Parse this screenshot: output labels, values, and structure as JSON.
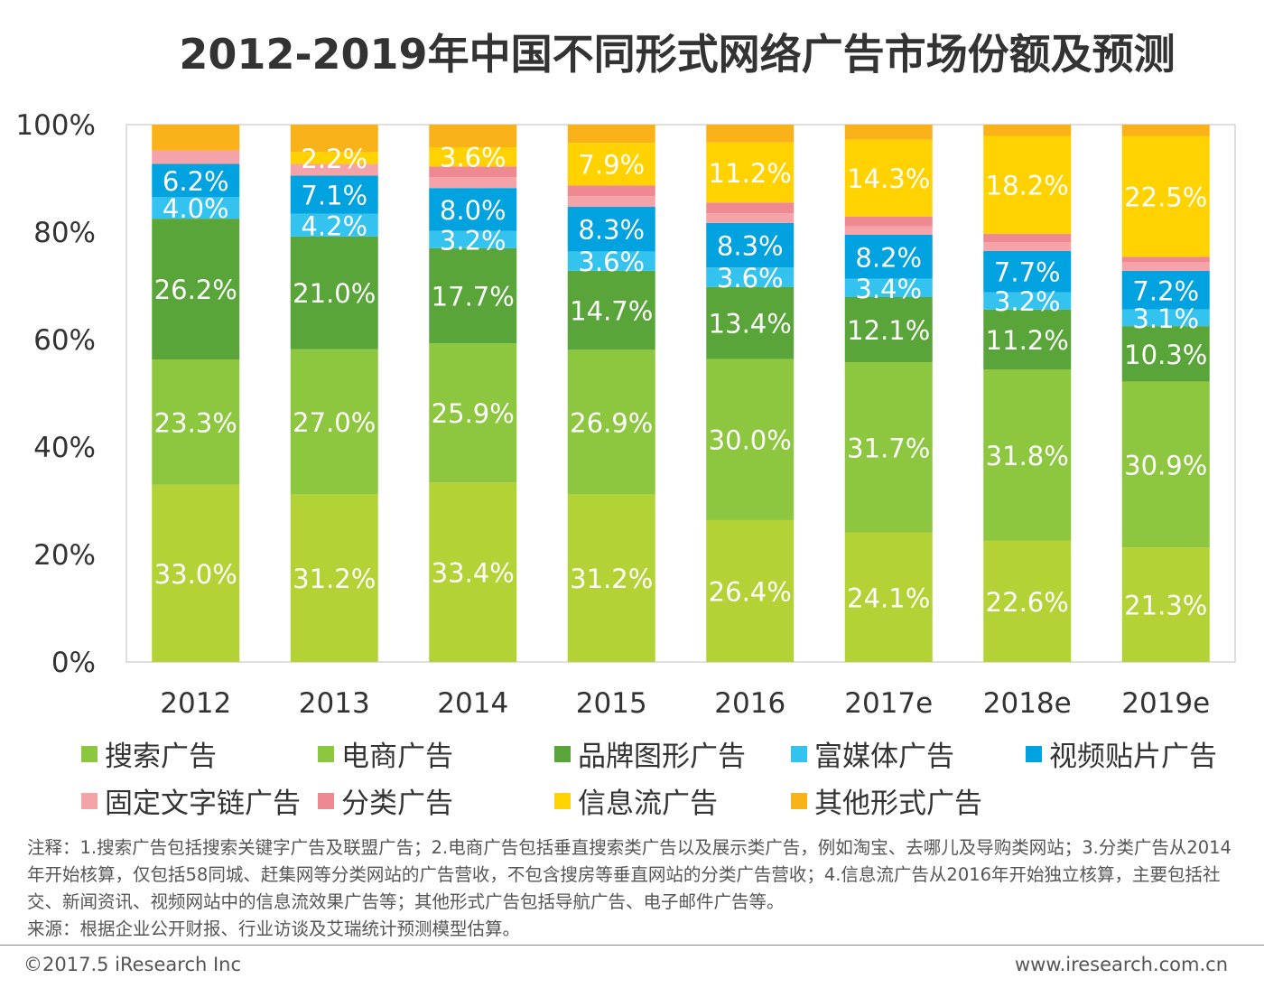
{
  "title": "2012-2019年中国不同形式网络广告市场份额及预测",
  "chart_data": {
    "type": "bar",
    "stacked": true,
    "categories": [
      "2012",
      "2013",
      "2014",
      "2015",
      "2016",
      "2017e",
      "2018e",
      "2019e"
    ],
    "y_ticks": [
      "0%",
      "20%",
      "40%",
      "60%",
      "80%",
      "100%"
    ],
    "ylim": [
      0,
      100
    ],
    "series": [
      {
        "name": "搜索广告",
        "color": "#b2d235",
        "values": [
          33.0,
          31.2,
          33.4,
          31.2,
          26.4,
          24.1,
          22.6,
          21.3
        ],
        "labels": [
          "33.0%",
          "31.2%",
          "33.4%",
          "31.2%",
          "26.4%",
          "24.1%",
          "22.6%",
          "21.3%"
        ]
      },
      {
        "name": "电商广告",
        "color": "#8dc63f",
        "values": [
          23.3,
          27.0,
          25.9,
          26.9,
          30.0,
          31.7,
          31.8,
          30.9
        ],
        "labels": [
          "23.3%",
          "27.0%",
          "25.9%",
          "26.9%",
          "30.0%",
          "31.7%",
          "31.8%",
          "30.9%"
        ]
      },
      {
        "name": "品牌图形广告",
        "color": "#5aa53a",
        "values": [
          26.2,
          21.0,
          17.7,
          14.7,
          13.4,
          12.1,
          11.2,
          10.3
        ],
        "labels": [
          "26.2%",
          "21.0%",
          "17.7%",
          "14.7%",
          "13.4%",
          "12.1%",
          "11.2%",
          "10.3%"
        ]
      },
      {
        "name": "富媒体广告",
        "color": "#33c3ee",
        "values": [
          4.0,
          4.2,
          3.2,
          3.6,
          3.6,
          3.4,
          3.2,
          3.1
        ],
        "labels": [
          "4.0%",
          "4.2%",
          "3.2%",
          "3.6%",
          "3.6%",
          "3.4%",
          "3.2%",
          "3.1%"
        ]
      },
      {
        "name": "视频贴片广告",
        "color": "#00a3e0",
        "values": [
          6.2,
          7.1,
          8.0,
          8.3,
          8.3,
          8.2,
          7.7,
          7.2
        ],
        "labels": [
          "6.2%",
          "7.1%",
          "8.0%",
          "8.3%",
          "8.3%",
          "8.2%",
          "7.7%",
          "7.2%"
        ]
      },
      {
        "name": "固定文字链广告",
        "color": "#f4a3a8",
        "values": [
          2.5,
          2.2,
          2.0,
          2.0,
          1.8,
          1.6,
          1.6,
          1.6
        ],
        "labels": [
          "",
          "",
          "",
          "",
          "",
          "",
          "",
          ""
        ]
      },
      {
        "name": "分类广告",
        "color": "#ee8891",
        "values": [
          0,
          0,
          2.0,
          2.0,
          2.0,
          1.8,
          1.6,
          1.0
        ],
        "labels": [
          "",
          "",
          "",
          "",
          "",
          "",
          "",
          ""
        ]
      },
      {
        "name": "信息流广告",
        "color": "#ffd200",
        "values": [
          0,
          2.2,
          3.6,
          7.9,
          11.2,
          14.3,
          18.2,
          22.5
        ],
        "labels": [
          "",
          "2.2%",
          "3.6%",
          "7.9%",
          "11.2%",
          "14.3%",
          "18.2%",
          "22.5%"
        ]
      },
      {
        "name": "其他形式广告",
        "color": "#f9b21a",
        "values": [
          4.8,
          5.1,
          4.2,
          3.4,
          3.3,
          2.8,
          2.1,
          2.1
        ],
        "labels": [
          "",
          "",
          "",
          "",
          "",
          "",
          "",
          ""
        ]
      }
    ],
    "legend_position": "bottom",
    "grid": false
  },
  "legend_colors": [
    "#8dc63f",
    "#8dc63f",
    "#5aa53a",
    "#33c3ee",
    "#00a3e0",
    "#f4a3a8",
    "#ee8891",
    "#ffd200",
    "#f9b21a"
  ],
  "notes": "注释：1.搜索广告包括搜索关键字广告及联盟广告；2.电商广告包括垂直搜索类广告以及展示类广告，例如淘宝、去哪儿及导购类网站；3.分类广告从2014年开始核算，仅包括58同城、赶集网等分类网站的广告营收，不包含搜房等垂直网站的分类广告营收；4.信息流广告从2016年开始独立核算，主要包括社交、新闻资讯、视频网站中的信息流效果广告等；其他形式广告包括导航广告、电子邮件广告等。",
  "source": "来源：根据企业公开财报、行业访谈及艾瑞统计预测模型估算。",
  "copyright": "©2017.5 iResearch Inc",
  "website": "www.iresearch.com.cn"
}
